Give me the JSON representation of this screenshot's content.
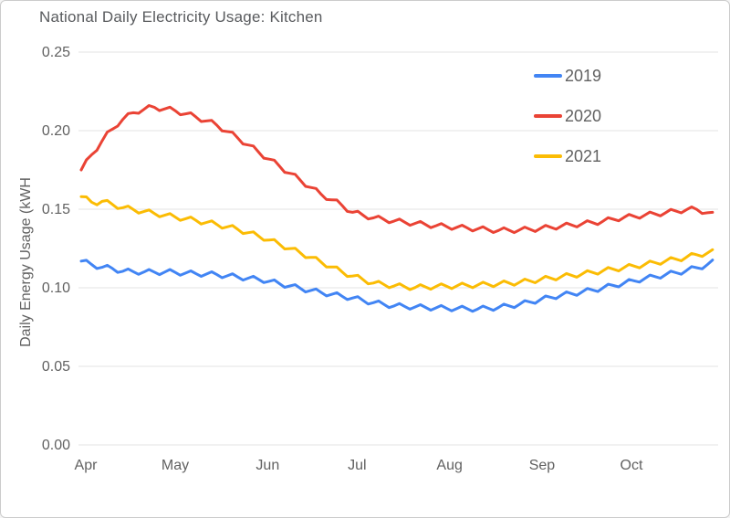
{
  "window": {
    "background": "#ffffff",
    "frame_border": "#cccccc"
  },
  "colors": {
    "title_text": "#595b5e",
    "axis_text": "#616161",
    "grid": "#e3e3e3",
    "series_2019": "#4285F4",
    "series_2020": "#EA4335",
    "series_2021": "#FBBC04"
  },
  "chart_data": {
    "type": "line",
    "title": "National Daily Electricity Usage: Kitchen",
    "xlabel": "",
    "ylabel": "Daily Energy Usage (kWH",
    "x_tick_labels": [
      "Apr",
      "May",
      "Jun",
      "Jul",
      "Aug",
      "Sep",
      "Oct"
    ],
    "month_start_days": [
      0,
      30,
      61,
      91,
      122,
      153,
      183
    ],
    "days_total": 213,
    "y_tick_labels": [
      "0.00",
      "0.05",
      "0.10",
      "0.15",
      "0.20",
      "0.25"
    ],
    "y_tick_values": [
      0,
      0.05,
      0.1,
      0.15,
      0.2,
      0.25
    ],
    "ylim": [
      0,
      0.25
    ],
    "grid": "horizontal-only",
    "legend_position": "inside-top-right",
    "weekly_oscillation": {
      "period_days": 7,
      "amplitude": 0.0016
    },
    "series": [
      {
        "name": "2019",
        "color": "#4285F4",
        "points": [
          [
            0,
            0.117
          ],
          [
            4,
            0.1145
          ],
          [
            7,
            0.113
          ],
          [
            10,
            0.1125
          ],
          [
            14,
            0.1105
          ],
          [
            21,
            0.11
          ],
          [
            30,
            0.11
          ],
          [
            38,
            0.109
          ],
          [
            45,
            0.1085
          ],
          [
            52,
            0.107
          ],
          [
            61,
            0.105
          ],
          [
            68,
            0.102
          ],
          [
            75,
            0.099
          ],
          [
            82,
            0.0965
          ],
          [
            91,
            0.0935
          ],
          [
            98,
            0.0905
          ],
          [
            105,
            0.0885
          ],
          [
            112,
            0.0878
          ],
          [
            119,
            0.0872
          ],
          [
            126,
            0.0868
          ],
          [
            133,
            0.0865
          ],
          [
            140,
            0.0875
          ],
          [
            147,
            0.0895
          ],
          [
            153,
            0.092
          ],
          [
            160,
            0.095
          ],
          [
            167,
            0.097
          ],
          [
            174,
            0.0995
          ],
          [
            181,
            0.1025
          ],
          [
            188,
            0.1055
          ],
          [
            195,
            0.108
          ],
          [
            202,
            0.1105
          ],
          [
            206,
            0.1125
          ],
          [
            209,
            0.114
          ],
          [
            213,
            0.117
          ]
        ]
      },
      {
        "name": "2020",
        "color": "#EA4335",
        "points": [
          [
            0,
            0.175
          ],
          [
            4,
            0.186
          ],
          [
            8,
            0.196
          ],
          [
            13,
            0.206
          ],
          [
            18,
            0.212
          ],
          [
            24,
            0.215
          ],
          [
            31,
            0.213
          ],
          [
            38,
            0.209
          ],
          [
            45,
            0.204
          ],
          [
            52,
            0.196
          ],
          [
            59,
            0.187
          ],
          [
            66,
            0.178
          ],
          [
            73,
            0.169
          ],
          [
            80,
            0.16
          ],
          [
            87,
            0.153
          ],
          [
            91,
            0.148
          ],
          [
            98,
            0.1445
          ],
          [
            105,
            0.1425
          ],
          [
            112,
            0.141
          ],
          [
            119,
            0.1395
          ],
          [
            126,
            0.1385
          ],
          [
            133,
            0.1375
          ],
          [
            140,
            0.1365
          ],
          [
            147,
            0.1368
          ],
          [
            153,
            0.1375
          ],
          [
            160,
            0.139
          ],
          [
            167,
            0.1405
          ],
          [
            174,
            0.142
          ],
          [
            181,
            0.1445
          ],
          [
            188,
            0.146
          ],
          [
            195,
            0.1475
          ],
          [
            202,
            0.1495
          ],
          [
            206,
            0.15
          ],
          [
            209,
            0.1485
          ],
          [
            213,
            0.1455
          ]
        ]
      },
      {
        "name": "2021",
        "color": "#FBBC04",
        "points": [
          [
            0,
            0.158
          ],
          [
            4,
            0.154
          ],
          [
            7,
            0.155
          ],
          [
            14,
            0.151
          ],
          [
            21,
            0.1485
          ],
          [
            30,
            0.1455
          ],
          [
            38,
            0.143
          ],
          [
            45,
            0.1405
          ],
          [
            52,
            0.1375
          ],
          [
            61,
            0.132
          ],
          [
            68,
            0.1265
          ],
          [
            75,
            0.121
          ],
          [
            82,
            0.115
          ],
          [
            87,
            0.1105
          ],
          [
            91,
            0.1075
          ],
          [
            98,
            0.103
          ],
          [
            105,
            0.1012
          ],
          [
            112,
            0.1002
          ],
          [
            119,
            0.1008
          ],
          [
            126,
            0.1012
          ],
          [
            133,
            0.1018
          ],
          [
            140,
            0.1025
          ],
          [
            147,
            0.1035
          ],
          [
            153,
            0.105
          ],
          [
            160,
            0.1068
          ],
          [
            167,
            0.1085
          ],
          [
            174,
            0.1105
          ],
          [
            181,
            0.1125
          ],
          [
            188,
            0.1145
          ],
          [
            195,
            0.1168
          ],
          [
            202,
            0.119
          ],
          [
            206,
            0.1208
          ],
          [
            209,
            0.1218
          ],
          [
            213,
            0.123
          ]
        ]
      }
    ]
  }
}
